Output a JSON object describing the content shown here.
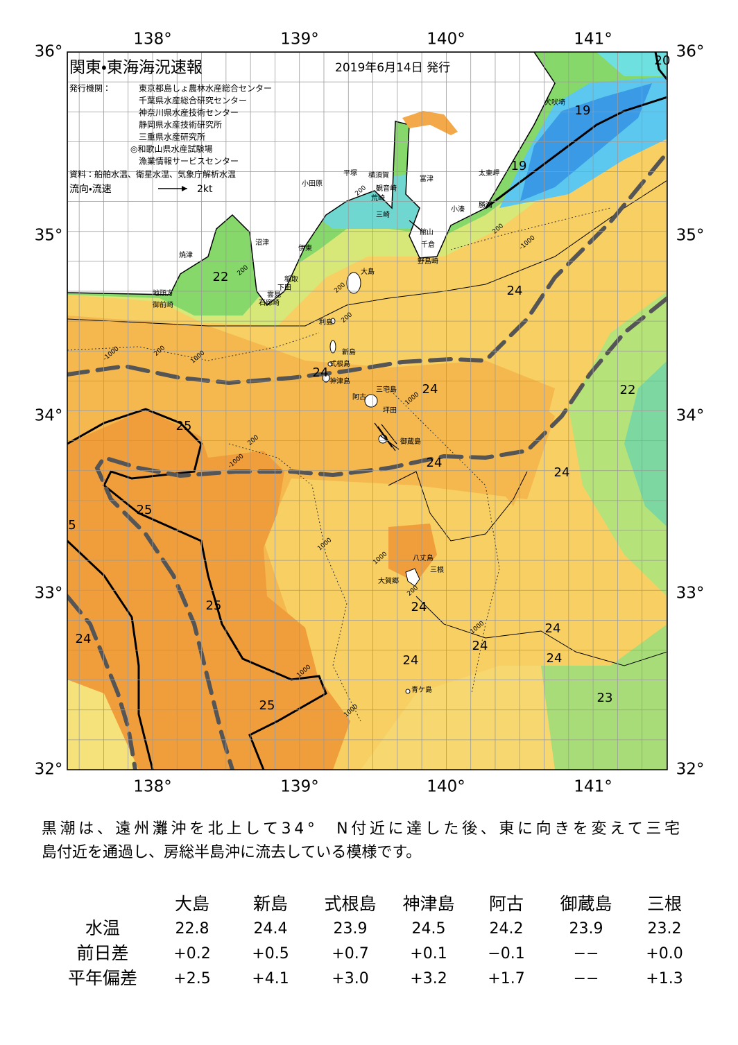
{
  "map": {
    "title": "関東・東海海況速報",
    "date": "2019年6月14日 発行",
    "issuer_label": "発行機関：",
    "issuers": [
      "東京都島しょ農林水産総合センター",
      "千葉県水産総合研究センター",
      "神奈川県水産技術センター",
      "静岡県水産技術研究所",
      "三重県水産研究所",
      "◎和歌山県水産試験場",
      "漁業情報サービスセンター"
    ],
    "source": "資料：船舶水温、衛星水温、気象庁解析水温",
    "legend": {
      "label": "流向・流速",
      "scale": "2kt"
    },
    "lon_labels_top": [
      "138°",
      "139°",
      "140°",
      "141°"
    ],
    "lon_labels_bottom": [
      "138°",
      "139°",
      "140°",
      "141°"
    ],
    "lat_labels_left": [
      "36°",
      "35°",
      "34°",
      "33°",
      "32°"
    ],
    "lat_labels_right": [
      "36°",
      "35°",
      "34°",
      "33°",
      "32°"
    ],
    "place_names": [
      "犬吠埼",
      "太東岬",
      "勝浦",
      "小湊",
      "館山",
      "千倉",
      "野島崎",
      "富津",
      "観音崎",
      "横須賀",
      "平塚",
      "小田原",
      "荒崎",
      "三崎",
      "沼津",
      "伊東",
      "焼津",
      "稲取",
      "下田",
      "雲見",
      "石廊崎",
      "地頭方",
      "御前崎",
      "大島",
      "利島",
      "新島",
      "式根島",
      "神津島",
      "三宅島",
      "阿古",
      "坪田",
      "御蔵島",
      "八丈島",
      "三根",
      "大賀郷",
      "青ケ島"
    ],
    "temperature_labels": [
      "20",
      "19",
      "19",
      "22",
      "24",
      "24",
      "24",
      "22",
      "25",
      "24",
      "24",
      "25",
      "5",
      "25",
      "24",
      "24",
      "24",
      "24",
      "24",
      "24",
      "23",
      "25"
    ],
    "depth_labels": [
      "200",
      "200",
      "200",
      "200",
      "-1000",
      "200",
      "1000",
      "1000",
      "200",
      "-1000",
      "1000",
      "1000",
      "200",
      "1000",
      "1000",
      "1000",
      "200",
      "-1000"
    ]
  },
  "description": [
    "黒潮は、遠州灘沖を北上して34°　N付近に達した後、東に向きを変えて三宅",
    "島付近を通過し、房総半島沖に流去している模様です。"
  ],
  "table": {
    "header": [
      "大島",
      "新島",
      "式根島",
      "神津島",
      "阿古",
      "御蔵島",
      "三根"
    ],
    "rows": [
      [
        "水温",
        "22.8",
        "24.4",
        "23.9",
        "24.5",
        "24.2",
        "23.9",
        "23.2"
      ],
      [
        "前日差",
        "+0.2",
        "+0.5",
        "+0.7",
        "+0.1",
        "−0.1",
        "−−",
        "+0.0"
      ],
      [
        "平年偏差",
        "+2.5",
        "+4.1",
        "+3.0",
        "+3.2",
        "+1.7",
        "−−",
        "+1.3"
      ]
    ]
  }
}
